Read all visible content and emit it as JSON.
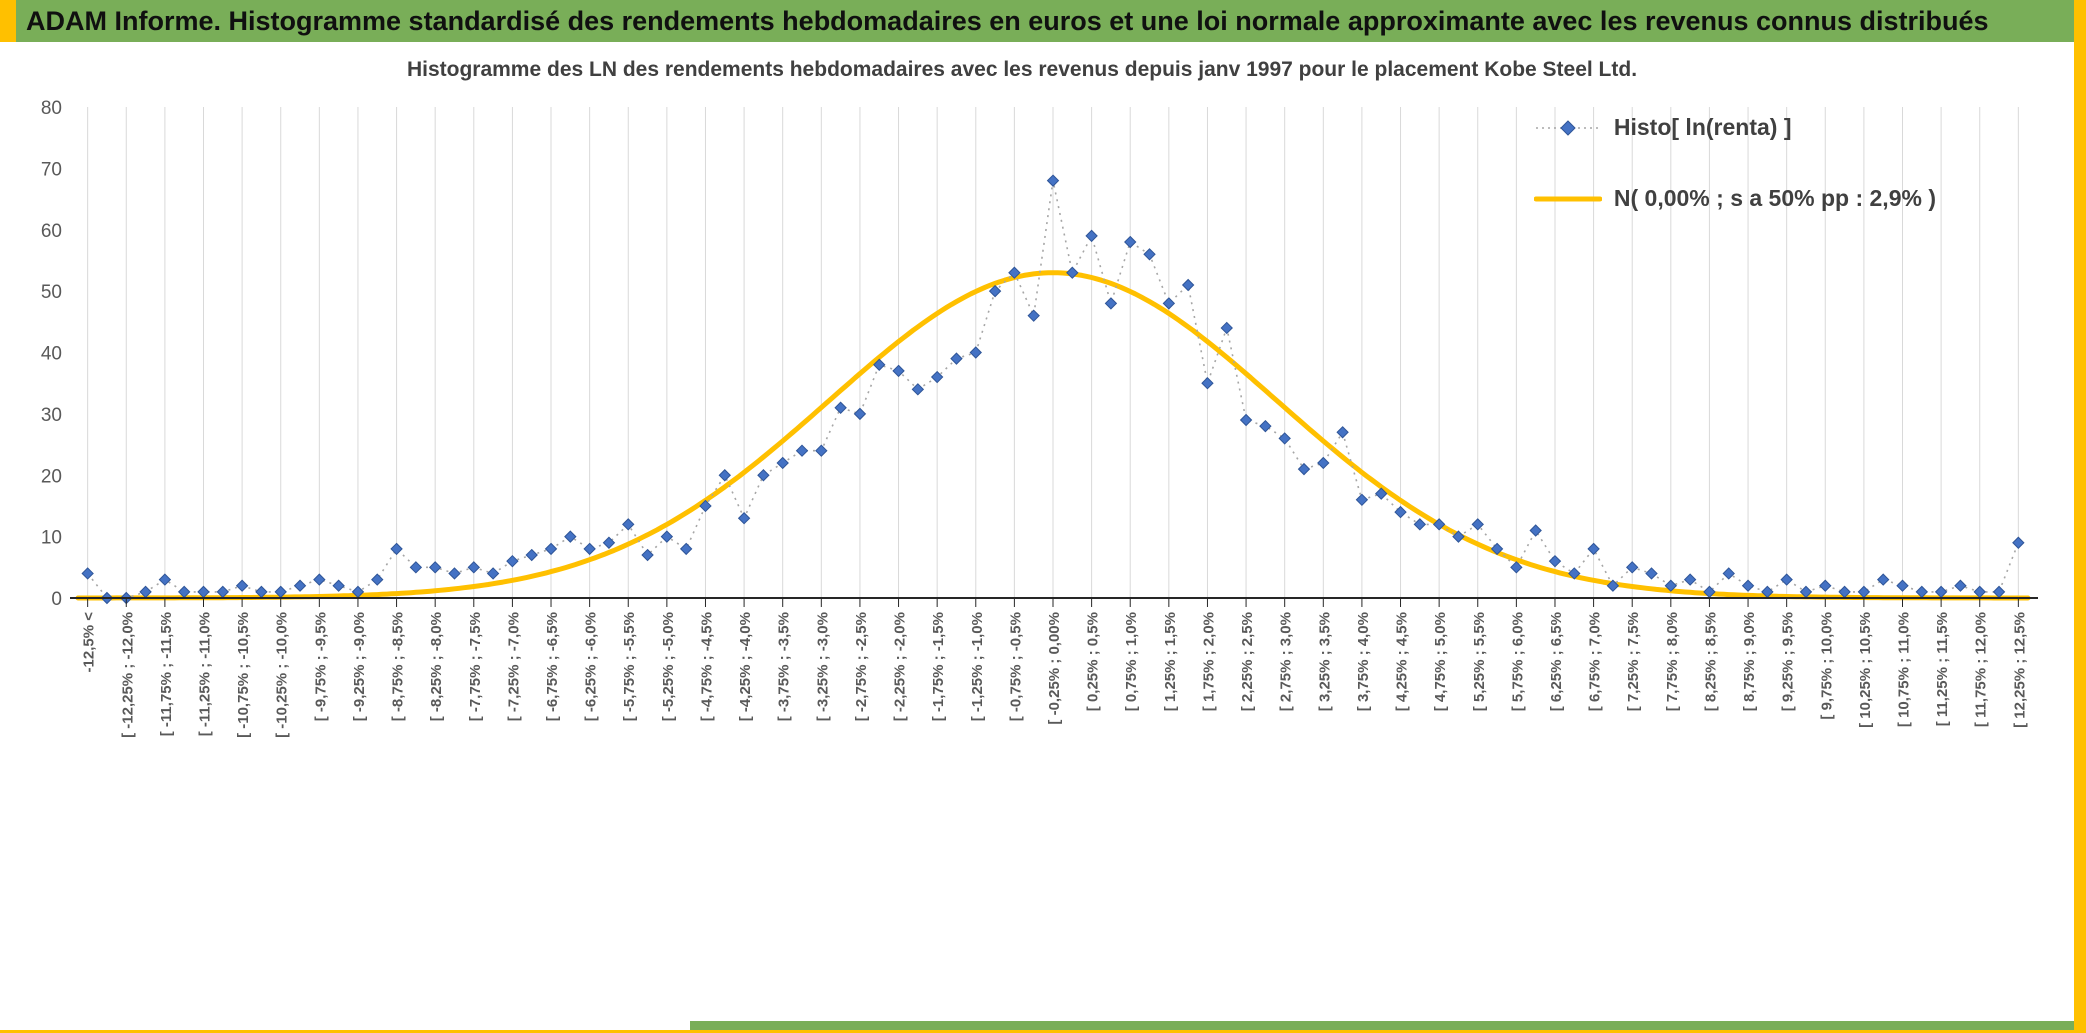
{
  "header": {
    "title": "ADAM Informe. Histogramme standardisé des rendements hebdomadaires en euros et une loi normale approximante avec les revenus connus distribués"
  },
  "colors": {
    "header_green": "#79AE58",
    "accent_yellow": "#FFC000",
    "histogram_blue": "#4472C4",
    "histogram_blue_edge": "#2F5597",
    "dotted_connector_gray": "#A6A6A6",
    "normal_curve_yellow": "#FFC000",
    "gridline_gray": "#D9D9D9",
    "axis_text_gray": "#595959",
    "title_gray": "#404040"
  },
  "chart_data": {
    "type": "line",
    "title": "Histogramme des LN des rendements hebdomadaires avec les revenus depuis janv 1997 pour le placement Kobe Steel Ltd.",
    "ylim": [
      0,
      80
    ],
    "y_ticks": [
      0,
      10,
      20,
      30,
      40,
      50,
      60,
      70,
      80
    ],
    "grid": "vertical-only",
    "legend_position": "top-right",
    "bin_width_pct": 0.25,
    "x_range_pct": [
      -12.5,
      12.5
    ],
    "x_tick_labels": [
      "-12,5% <",
      "[ -12,25% ; -12,0%",
      "[ -11,75% ; -11,5%",
      "[ -11,25% ; -11,0%",
      "[ -10,75% ; -10,5%",
      "[ -10,25% ; -10,0%",
      "[ -9,75% ; -9,5%",
      "[ -9,25% ; -9,0%",
      "[ -8,75% ; -8,5%",
      "[ -8,25% ; -8,0%",
      "[ -7,75% ; -7,5%",
      "[ -7,25% ; -7,0%",
      "[ -6,75% ; -6,5%",
      "[ -6,25% ; -6,0%",
      "[ -5,75% ; -5,5%",
      "[ -5,25% ; -5,0%",
      "[ -4,75% ; -4,5%",
      "[ -4,25% ; -4,0%",
      "[ -3,75% ; -3,5%",
      "[ -3,25% ; -3,0%",
      "[ -2,75% ; -2,5%",
      "[ -2,25% ; -2,0%",
      "[ -1,75% ; -1,5%",
      "[ -1,25% ; -1,0%",
      "[ -0,75% ; -0,5%",
      "[ -0,25% ; 0,00%",
      "[ 0,25% ; 0,5%",
      "[ 0,75% ; 1,0%",
      "[ 1,25% ; 1,5%",
      "[ 1,75% ; 2,0%",
      "[ 2,25% ; 2,5%",
      "[ 2,75% ; 3,0%",
      "[ 3,25% ; 3,5%",
      "[ 3,75% ; 4,0%",
      "[ 4,25% ; 4,5%",
      "[ 4,75% ; 5,0%",
      "[ 5,25% ; 5,5%",
      "[ 5,75% ; 6,0%",
      "[ 6,25% ; 6,5%",
      "[ 6,75% ; 7,0%",
      "[ 7,25% ; 7,5%",
      "[ 7,75% ; 8,0%",
      "[ 8,25% ; 8,5%",
      "[ 8,75% ; 9,0%",
      "[ 9,25% ; 9,5%",
      "[ 9,75% ; 10,0%",
      "[ 10,25% ; 10,5%",
      "[ 10,75% ; 11,0%",
      "[ 11,25% ; 11,5%",
      "[ 11,75% ; 12,0%",
      "[ 12,25% ; 12,5%"
    ],
    "series": [
      {
        "name": "Histo[ ln(renta) ]",
        "type": "scatter-line",
        "marker": "diamond",
        "line_style": "dotted",
        "color": "#4472C4",
        "values": [
          4,
          0,
          0,
          1,
          3,
          1,
          1,
          1,
          2,
          1,
          1,
          2,
          3,
          2,
          1,
          3,
          8,
          5,
          5,
          4,
          5,
          4,
          6,
          7,
          8,
          10,
          8,
          9,
          12,
          7,
          10,
          8,
          15,
          20,
          13,
          20,
          22,
          24,
          24,
          31,
          30,
          38,
          37,
          34,
          36,
          39,
          40,
          50,
          53,
          46,
          68,
          53,
          59,
          48,
          58,
          56,
          48,
          51,
          35,
          44,
          29,
          28,
          26,
          21,
          22,
          27,
          16,
          17,
          14,
          12,
          12,
          10,
          12,
          8,
          5,
          11,
          6,
          4,
          8,
          2,
          5,
          4,
          2,
          3,
          1,
          4,
          2,
          1,
          3,
          1,
          2,
          1,
          1,
          3,
          2,
          1,
          1,
          2,
          1,
          1,
          9
        ]
      },
      {
        "name": "N( 0,00% ; s a 50% pp : 2,9% )",
        "type": "normal-curve",
        "color": "#FFC000",
        "peak": 53,
        "center_bin": 50.5,
        "sigma_bins": 11.6,
        "mean_label": "0,00%",
        "stdev_label": "2,9%"
      }
    ]
  }
}
